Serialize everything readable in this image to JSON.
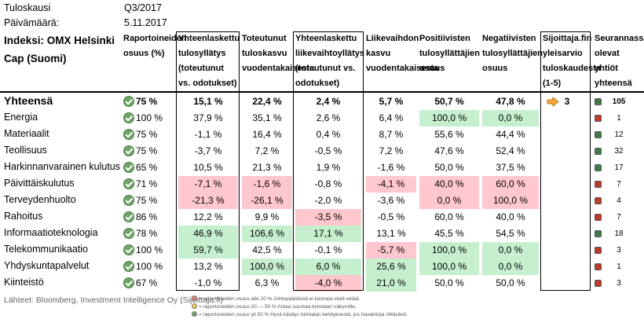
{
  "meta": {
    "period_label": "Tuloskausi",
    "period_value": "Q3/2017",
    "date_label": "Päivämäärä:",
    "date_value": "5.11.2017"
  },
  "headers": {
    "index": "Indeksi: OMX Helsinki Cap (Suomi)",
    "reported": "Raportoineiden osuus (%)",
    "total_surprise": "Yhteenlaskettu tulosyllätys (toteutunut vs. odotukset)",
    "earnings_growth": "Toteutunut tuloskasvu vuodentakaisesta",
    "revenue_surprise": "Yhteenlaskettu liikevaihtoyllätys (toteutunut vs. odotukset)",
    "revenue_growth": "Liikevaihdon kasvu vuodentakaisesta",
    "positive": "Positiivisten tulosyllättäjien osuus",
    "negative": "Negatiivisten tulosyllättäjien osuus",
    "rating": "Sijoittaja.fin yleisarvio tuloskaudesta (1-5)",
    "followers": "Seurannassa olevat yhtiöt yhteensä"
  },
  "total": {
    "name": "Yhteensä",
    "reported": "75 %",
    "surprise": "15,1 %",
    "growth": "22,4 %",
    "rev_surprise": "2,4 %",
    "rev_growth": "5,7 %",
    "positive": "50,7 %",
    "negative": "47,8 %",
    "rating": "3",
    "count": "105",
    "status_color": "#3f7a4d"
  },
  "rows": [
    {
      "name": "Energia",
      "reported": "100 %",
      "surprise": "37,9 %",
      "growth": "35,1 %",
      "rev_surprise": "2,6 %",
      "rev_growth": "6,4 %",
      "positive": "100,0 %",
      "negative": "0,0 %",
      "count": "1",
      "status_color": "#c0392b"
    },
    {
      "name": "Materiaalit",
      "reported": "75 %",
      "surprise": "-1,1 %",
      "growth": "16,4 %",
      "rev_surprise": "0,4 %",
      "rev_growth": "8,7 %",
      "positive": "55,6 %",
      "negative": "44,4 %",
      "count": "12",
      "status_color": "#3f7a4d"
    },
    {
      "name": "Teollisuus",
      "reported": "75 %",
      "surprise": "-3,7 %",
      "growth": "7,2 %",
      "rev_surprise": "-0,5 %",
      "rev_growth": "7,2 %",
      "positive": "47,6 %",
      "negative": "52,4 %",
      "count": "32",
      "status_color": "#3f7a4d"
    },
    {
      "name": "Harkinnanvarainen kulutus",
      "reported": "65 %",
      "surprise": "10,5 %",
      "growth": "21,3 %",
      "rev_surprise": "1,9 %",
      "rev_growth": "-1,6 %",
      "positive": "50,0 %",
      "negative": "37,5 %",
      "count": "17",
      "status_color": "#3f7a4d"
    },
    {
      "name": "Päivittäiskulutus",
      "reported": "71 %",
      "surprise": "-7,1 %",
      "growth": "-1,6 %",
      "rev_surprise": "-0,8 %",
      "rev_growth": "-4,1 %",
      "positive": "40,0 %",
      "negative": "60,0 %",
      "count": "7",
      "status_color": "#c0392b"
    },
    {
      "name": "Terveydenhuolto",
      "reported": "75 %",
      "surprise": "-21,3 %",
      "growth": "-26,1 %",
      "rev_surprise": "-2,0 %",
      "rev_growth": "-3,6 %",
      "positive": "0,0 %",
      "negative": "100,0 %",
      "count": "4",
      "status_color": "#c0392b"
    },
    {
      "name": "Rahoitus",
      "reported": "86 %",
      "surprise": "12,2 %",
      "growth": "9,9 %",
      "rev_surprise": "-3,5 %",
      "rev_growth": "-0,5 %",
      "positive": "60,0 %",
      "negative": "40,0 %",
      "count": "7",
      "status_color": "#c0392b"
    },
    {
      "name": "Informaatioteknologia",
      "reported": "78 %",
      "surprise": "46,9 %",
      "growth": "106,6 %",
      "rev_surprise": "17,1 %",
      "rev_growth": "13,1 %",
      "positive": "45,5 %",
      "negative": "54,5 %",
      "count": "18",
      "status_color": "#3f7a4d"
    },
    {
      "name": "Telekommunikaatio",
      "reported": "100 %",
      "surprise": "59,7 %",
      "growth": "42,5 %",
      "rev_surprise": "-0,1 %",
      "rev_growth": "-5,7 %",
      "positive": "100,0 %",
      "negative": "0,0 %",
      "count": "3",
      "status_color": "#c0392b"
    },
    {
      "name": "Yhdyskuntapalvelut",
      "reported": "100 %",
      "surprise": "13,2 %",
      "growth": "100,0 %",
      "rev_surprise": "6,0 %",
      "rev_growth": "25,6 %",
      "positive": "100,0 %",
      "negative": "0,0 %",
      "count": "1",
      "status_color": "#c0392b"
    },
    {
      "name": "Kiinteistö",
      "reported": "67 %",
      "surprise": "-1,0 %",
      "growth": "6,3 %",
      "rev_surprise": "-4,0 %",
      "rev_growth": "21,0 %",
      "positive": "50,0 %",
      "negative": "50,0 %",
      "count": "3",
      "status_color": "#c0392b"
    }
  ],
  "footer": {
    "source": "Lähteet: Bloomberg, Investment Intelligence Oy (Sijoittaja.fi)",
    "legend": [
      {
        "text": "= raportoneiden osuus alle 20 % Johtopäätöksiä ei kannata vielä vetää.",
        "color": "#e07a6a"
      },
      {
        "text": "= raportoneiden osuus 20 — 50 % Antaa suuntaa toimialan näkymille.",
        "color": "#f2c84b"
      },
      {
        "text": "= raportoneiden osuus yli 50 % Hyvä käsitys toimialan kehityksestä, jos havaintoja riittävästi.",
        "color": "#6fa368"
      }
    ]
  },
  "colors": {
    "green_cell": "#c6efce",
    "red_cell": "#ffc7ce",
    "arrow": "#f4a83a"
  }
}
